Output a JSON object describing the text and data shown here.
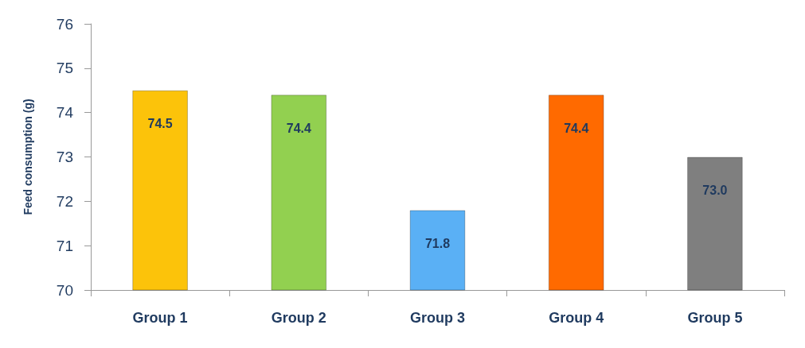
{
  "chart_data": {
    "type": "bar",
    "ylabel": "Feed consumption (g)",
    "categories": [
      "Group 1",
      "Group 2",
      "Group 3",
      "Group 4",
      "Group 5"
    ],
    "values": [
      74.5,
      74.4,
      71.8,
      74.4,
      73.0
    ],
    "colors": [
      "#fcc30a",
      "#92d050",
      "#5ab0f5",
      "#ff6a00",
      "#7f7f7f"
    ],
    "value_labels": [
      "74.5",
      "74.4",
      "71.8",
      "74.4",
      "73.0"
    ],
    "ylim": [
      70,
      76
    ],
    "yticks": [
      70,
      71,
      72,
      73,
      74,
      75,
      76
    ],
    "grid": false
  }
}
